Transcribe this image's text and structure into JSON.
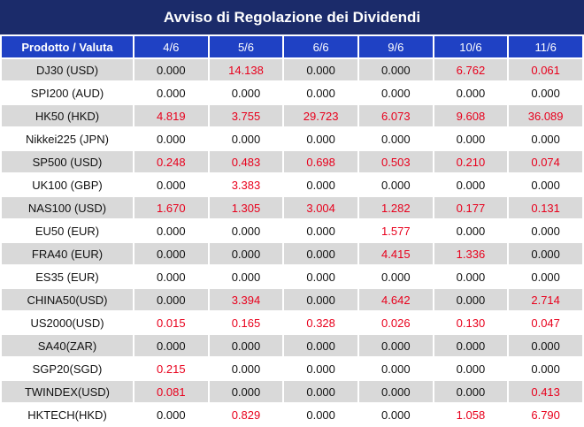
{
  "title": "Avviso di Regolazione dei Dividendi",
  "header": {
    "product_label": "Prodotto / Valuta",
    "dates": [
      "4/6",
      "5/6",
      "6/6",
      "9/6",
      "10/6",
      "11/6"
    ]
  },
  "colors": {
    "title_bg": "#1b2b6a",
    "header_bg": "#1f41c4",
    "shaded_row": "#d9d9d9",
    "positive_value": "#e8001c"
  },
  "rows": [
    {
      "product": "DJ30 (USD)",
      "values": [
        "0.000",
        "14.138",
        "0.000",
        "0.000",
        "6.762",
        "0.061"
      ]
    },
    {
      "product": "SPI200 (AUD)",
      "values": [
        "0.000",
        "0.000",
        "0.000",
        "0.000",
        "0.000",
        "0.000"
      ]
    },
    {
      "product": "HK50 (HKD)",
      "values": [
        "4.819",
        "3.755",
        "29.723",
        "6.073",
        "9.608",
        "36.089"
      ]
    },
    {
      "product": "Nikkei225 (JPN)",
      "values": [
        "0.000",
        "0.000",
        "0.000",
        "0.000",
        "0.000",
        "0.000"
      ]
    },
    {
      "product": "SP500 (USD)",
      "values": [
        "0.248",
        "0.483",
        "0.698",
        "0.503",
        "0.210",
        "0.074"
      ]
    },
    {
      "product": "UK100 (GBP)",
      "values": [
        "0.000",
        "3.383",
        "0.000",
        "0.000",
        "0.000",
        "0.000"
      ]
    },
    {
      "product": "NAS100 (USD)",
      "values": [
        "1.670",
        "1.305",
        "3.004",
        "1.282",
        "0.177",
        "0.131"
      ]
    },
    {
      "product": "EU50 (EUR)",
      "values": [
        "0.000",
        "0.000",
        "0.000",
        "1.577",
        "0.000",
        "0.000"
      ]
    },
    {
      "product": "FRA40 (EUR)",
      "values": [
        "0.000",
        "0.000",
        "0.000",
        "4.415",
        "1.336",
        "0.000"
      ]
    },
    {
      "product": "ES35 (EUR)",
      "values": [
        "0.000",
        "0.000",
        "0.000",
        "0.000",
        "0.000",
        "0.000"
      ]
    },
    {
      "product": "CHINA50(USD)",
      "values": [
        "0.000",
        "3.394",
        "0.000",
        "4.642",
        "0.000",
        "2.714"
      ]
    },
    {
      "product": "US2000(USD)",
      "values": [
        "0.015",
        "0.165",
        "0.328",
        "0.026",
        "0.130",
        "0.047"
      ]
    },
    {
      "product": "SA40(ZAR)",
      "values": [
        "0.000",
        "0.000",
        "0.000",
        "0.000",
        "0.000",
        "0.000"
      ]
    },
    {
      "product": "SGP20(SGD)",
      "values": [
        "0.215",
        "0.000",
        "0.000",
        "0.000",
        "0.000",
        "0.000"
      ]
    },
    {
      "product": "TWINDEX(USD)",
      "values": [
        "0.081",
        "0.000",
        "0.000",
        "0.000",
        "0.000",
        "0.413"
      ]
    },
    {
      "product": "HKTECH(HKD)",
      "values": [
        "0.000",
        "0.829",
        "0.000",
        "0.000",
        "1.058",
        "6.790"
      ]
    }
  ]
}
